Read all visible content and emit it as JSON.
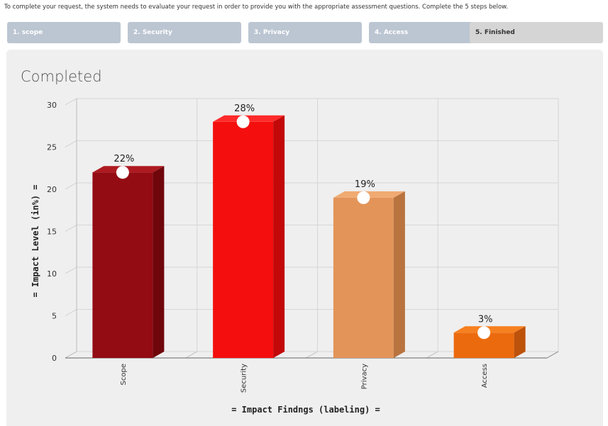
{
  "intro_text": "To complete your request, the system needs to evaluate your request in order to provide you with the appropriate assessment questions. Complete the 5 steps below.",
  "steps": [
    {
      "label": "1. scope",
      "active": false
    },
    {
      "label": "2. Security",
      "active": false
    },
    {
      "label": "3. Privacy",
      "active": false
    },
    {
      "label": "4. Access",
      "active": false
    },
    {
      "label": "5. Finished",
      "active": true
    }
  ],
  "colors": {
    "step_bg": "#bcc6d2",
    "step_active_bg": "#d5d5d5",
    "panel_bg": "#efefef"
  },
  "chart_data": {
    "type": "bar",
    "title": "Completed",
    "xlabel": "= Impact Findngs (labeling) =",
    "ylabel": "= Impact Level (in%) =",
    "ylim": [
      0,
      30
    ],
    "yticks": [
      0,
      5,
      10,
      15,
      20,
      25,
      30
    ],
    "grid": true,
    "categories": [
      "Scope",
      "Security",
      "Privacy",
      "Access"
    ],
    "values": [
      22,
      28,
      19,
      3
    ],
    "data_labels": [
      "22%",
      "28%",
      "19%",
      "3%"
    ],
    "bar_colors": [
      "#930b13",
      "#f40e0e",
      "#e39459",
      "#ec6a0e"
    ],
    "bar_side_colors": [
      "#6f060b",
      "#c20808",
      "#b8733f",
      "#bd520a"
    ],
    "bar_top_colors": [
      "#ad1a20",
      "#ff2a2a",
      "#f0aa72",
      "#f6801f"
    ]
  }
}
